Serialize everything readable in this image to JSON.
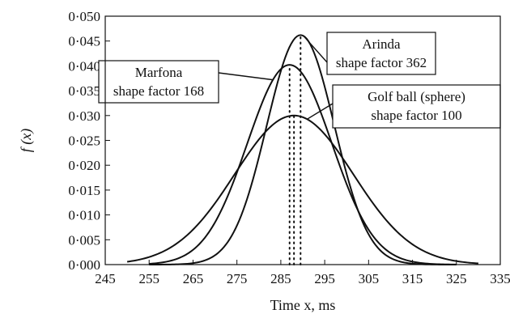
{
  "chart_data": {
    "type": "line",
    "title": "",
    "xlabel": "Time x, ms",
    "ylabel": "f (x)",
    "xlim": [
      245,
      335
    ],
    "ylim": [
      0.0,
      0.05
    ],
    "x_ticks": [
      "245",
      "255",
      "265",
      "275",
      "285",
      "295",
      "305",
      "315",
      "325",
      "335"
    ],
    "y_ticks": [
      "0·000",
      "0·005",
      "0·010",
      "0·015",
      "0·020",
      "0·025",
      "0·030",
      "0·035",
      "0·040",
      "0·045",
      "0·050"
    ],
    "grid": false,
    "legend": "none",
    "series": [
      {
        "name": "Arinda shape factor 362",
        "distribution": "normal",
        "mean": 289.5,
        "peak": 0.0462,
        "x": [
          255,
          265,
          275,
          280,
          285,
          289.5,
          295,
          300,
          305,
          315,
          325
        ],
        "y": [
          0.0,
          0.0004,
          0.0085,
          0.0228,
          0.0391,
          0.0462,
          0.0362,
          0.0186,
          0.0057,
          0.0001,
          0.0
        ]
      },
      {
        "name": "Marfona shape factor 168",
        "distribution": "normal",
        "mean": 287.0,
        "peak": 0.0402,
        "x": [
          255,
          265,
          275,
          280,
          287,
          295,
          300,
          305,
          315,
          325
        ],
        "y": [
          0.0002,
          0.0034,
          0.0192,
          0.0317,
          0.0402,
          0.0283,
          0.0163,
          0.0068,
          0.0004,
          0.0
        ]
      },
      {
        "name": "Golf ball (sphere) shape factor 100",
        "distribution": "normal",
        "mean": 288.0,
        "peak": 0.03,
        "x": [
          250,
          255,
          265,
          275,
          280,
          288,
          295,
          305,
          315,
          325,
          330
        ],
        "y": [
          0.0005,
          0.0016,
          0.0074,
          0.0189,
          0.0241,
          0.03,
          0.0261,
          0.0138,
          0.0043,
          0.0007,
          0.0
        ]
      }
    ],
    "annotations": [
      {
        "series": 0,
        "lines": [
          "Arinda",
          "shape factor 362"
        ]
      },
      {
        "series": 1,
        "lines": [
          "Marfona",
          "shape factor 168"
        ]
      },
      {
        "series": 2,
        "lines": [
          "Golf ball (sphere)",
          "shape factor 100"
        ]
      }
    ],
    "mean_markers": "dotted vertical line at each curve's mean"
  }
}
